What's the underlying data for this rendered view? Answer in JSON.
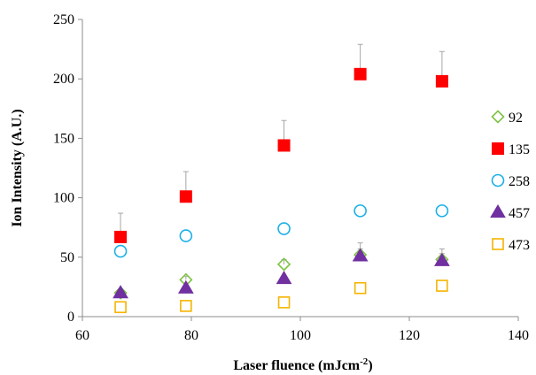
{
  "chart_data": {
    "type": "scatter",
    "xlabel": "Laser fluence (mJcm",
    "xlabel_sup": "-2",
    "xlabel_close": ")",
    "ylabel": "Ion Intensity (A.U.)",
    "xlim": [
      60,
      140
    ],
    "ylim": [
      0,
      250
    ],
    "x_ticks": [
      "60",
      "80",
      "100",
      "120",
      "140"
    ],
    "y_ticks": [
      "0",
      "50",
      "100",
      "150",
      "200",
      "250"
    ],
    "grid": false,
    "legend_position": "right",
    "x": [
      67,
      79,
      97,
      111,
      126
    ],
    "series": [
      {
        "name": "92",
        "marker": "diamond-open",
        "color": "#7ec242",
        "values": [
          20,
          31,
          44,
          52,
          48
        ],
        "err": [
          0,
          3,
          4,
          5,
          5
        ]
      },
      {
        "name": "135",
        "marker": "square-filled",
        "color": "#ff0000",
        "values": [
          67,
          101,
          144,
          204,
          198
        ],
        "err": [
          20,
          21,
          21,
          25,
          25
        ]
      },
      {
        "name": "258",
        "marker": "circle-open",
        "color": "#1ab0e8",
        "values": [
          55,
          68,
          74,
          89,
          89
        ],
        "err": [
          0,
          0,
          0,
          0,
          0
        ]
      },
      {
        "name": "457",
        "marker": "triangle-filled",
        "color": "#7030a0",
        "values": [
          20,
          24,
          32,
          51,
          47
        ],
        "err": [
          0,
          0,
          0,
          11,
          10
        ]
      },
      {
        "name": "473",
        "marker": "square-open",
        "color": "#f5b400",
        "values": [
          8,
          9,
          12,
          24,
          26
        ],
        "err": [
          0,
          0,
          0,
          0,
          0
        ]
      }
    ]
  }
}
